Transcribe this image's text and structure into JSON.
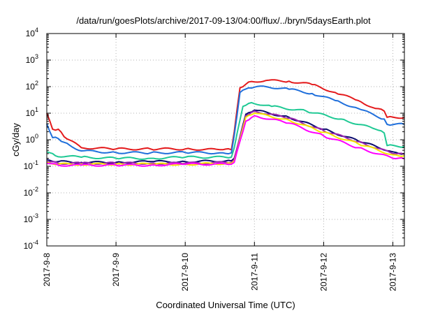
{
  "chart_data": {
    "type": "line",
    "title": "/data/run/goesPlots/archive/2017-09-13/04:00/flux/../bryn/5daysEarth.plot",
    "xlabel": "Coordinated Universal Time (UTC)",
    "ylabel": "cGy/day",
    "yscale": "log",
    "ylim": [
      0.0001,
      10000
    ],
    "xlim": [
      "2017-09-08 00:00",
      "2017-09-13 04:00"
    ],
    "grid": true,
    "legend": "none",
    "xticks": [
      {
        "label": "2017-9-8",
        "value": "2017-09-08"
      },
      {
        "label": "2017-9-9",
        "value": "2017-09-09"
      },
      {
        "label": "2017-9-10",
        "value": "2017-09-10"
      },
      {
        "label": "2017-9-11",
        "value": "2017-09-11"
      },
      {
        "label": "2017-9-12",
        "value": "2017-09-12"
      },
      {
        "label": "2017-9-13",
        "value": "2017-09-13"
      }
    ],
    "yticks": [
      {
        "base": "10",
        "exp": "-4",
        "value": 0.0001
      },
      {
        "base": "10",
        "exp": "-3",
        "value": 0.001
      },
      {
        "base": "10",
        "exp": "-2",
        "value": 0.01
      },
      {
        "base": "10",
        "exp": "-1",
        "value": 0.1
      },
      {
        "base": "10",
        "exp": "0",
        "value": 1
      },
      {
        "base": "10",
        "exp": "1",
        "value": 10
      },
      {
        "base": "10",
        "exp": "2",
        "value": 100
      },
      {
        "base": "10",
        "exp": "3",
        "value": 1000
      },
      {
        "base": "10",
        "exp": "4",
        "value": 10000
      }
    ],
    "series": [
      {
        "color": "#e41a1c",
        "x": [
          "2017-09-08 00:00",
          "2017-09-08 02:00",
          "2017-09-08 04:00",
          "2017-09-08 06:00",
          "2017-09-08 12:00",
          "2017-09-09 00:00",
          "2017-09-09 12:00",
          "2017-09-10 00:00",
          "2017-09-10 12:00",
          "2017-09-10 16:00",
          "2017-09-10 17:00",
          "2017-09-10 19:00",
          "2017-09-10 22:00",
          "2017-09-11 04:00",
          "2017-09-11 12:00",
          "2017-09-11 20:00",
          "2017-09-12 04:00",
          "2017-09-12 12:00",
          "2017-09-12 18:00",
          "2017-09-12 21:00",
          "2017-09-12 22:00",
          "2017-09-13 04:00"
        ],
        "y": [
          10,
          2.5,
          2.5,
          1.3,
          0.5,
          0.45,
          0.45,
          0.45,
          0.42,
          0.42,
          2,
          90,
          150,
          170,
          160,
          120,
          60,
          30,
          15,
          12,
          7,
          7
        ]
      },
      {
        "color": "#1f6fdb",
        "x": [
          "2017-09-08 00:00",
          "2017-09-08 02:00",
          "2017-09-08 04:00",
          "2017-09-08 06:00",
          "2017-09-08 12:00",
          "2017-09-09 00:00",
          "2017-09-09 12:00",
          "2017-09-10 00:00",
          "2017-09-10 12:00",
          "2017-09-10 16:00",
          "2017-09-10 17:00",
          "2017-09-10 19:00",
          "2017-09-10 22:00",
          "2017-09-11 04:00",
          "2017-09-11 12:00",
          "2017-09-11 20:00",
          "2017-09-12 04:00",
          "2017-09-12 12:00",
          "2017-09-12 18:00",
          "2017-09-12 21:00",
          "2017-09-12 22:00",
          "2017-09-13 04:00"
        ],
        "y": [
          4,
          1.2,
          1.1,
          0.8,
          0.38,
          0.33,
          0.32,
          0.33,
          0.32,
          0.32,
          1.5,
          60,
          90,
          100,
          80,
          55,
          30,
          15,
          8,
          6,
          3.8,
          3.8
        ]
      },
      {
        "color": "#1fc994",
        "x": [
          "2017-09-08 00:00",
          "2017-09-08 03:00",
          "2017-09-08 12:00",
          "2017-09-09 00:00",
          "2017-09-09 12:00",
          "2017-09-10 00:00",
          "2017-09-10 16:00",
          "2017-09-10 17:00",
          "2017-09-10 20:00",
          "2017-09-10 23:00",
          "2017-09-11 06:00",
          "2017-09-11 18:00",
          "2017-09-12 06:00",
          "2017-09-12 18:00",
          "2017-09-12 21:00",
          "2017-09-12 22:00",
          "2017-09-13 04:00"
        ],
        "y": [
          0.35,
          0.25,
          0.22,
          0.2,
          0.2,
          0.22,
          0.22,
          0.5,
          18,
          25,
          18,
          12,
          6,
          2.5,
          1.8,
          0.6,
          0.55
        ]
      },
      {
        "color": "#0b0b6e",
        "x": [
          "2017-09-08 00:00",
          "2017-09-08 04:00",
          "2017-09-08 12:00",
          "2017-09-09 00:00",
          "2017-09-09 12:00",
          "2017-09-10 00:00",
          "2017-09-10 16:00",
          "2017-09-10 17:00",
          "2017-09-10 21:00",
          "2017-09-11 00:00",
          "2017-09-11 12:00",
          "2017-09-12 00:00",
          "2017-09-12 12:00",
          "2017-09-13 00:00",
          "2017-09-13 04:00"
        ],
        "y": [
          0.18,
          0.15,
          0.14,
          0.14,
          0.15,
          0.15,
          0.16,
          0.2,
          9,
          13,
          7,
          2.5,
          0.9,
          0.35,
          0.3
        ]
      },
      {
        "color": "#9c27b0",
        "x": [
          "2017-09-08 00:00",
          "2017-09-08 04:00",
          "2017-09-08 12:00",
          "2017-09-09 00:00",
          "2017-09-09 12:00",
          "2017-09-10 00:00",
          "2017-09-10 16:00",
          "2017-09-10 17:00",
          "2017-09-10 21:00",
          "2017-09-11 00:00",
          "2017-09-11 12:00",
          "2017-09-12 00:00",
          "2017-09-12 12:00",
          "2017-09-13 00:00",
          "2017-09-13 04:00"
        ],
        "y": [
          0.15,
          0.13,
          0.13,
          0.13,
          0.13,
          0.13,
          0.14,
          0.18,
          8,
          12,
          6.5,
          2.2,
          0.85,
          0.3,
          0.28
        ]
      },
      {
        "color": "#f5e400",
        "x": [
          "2017-09-08 00:00",
          "2017-09-08 04:00",
          "2017-09-08 12:00",
          "2017-09-09 00:00",
          "2017-09-09 12:00",
          "2017-09-10 00:00",
          "2017-09-10 16:00",
          "2017-09-10 17:00",
          "2017-09-10 21:00",
          "2017-09-11 00:00",
          "2017-09-11 12:00",
          "2017-09-12 00:00",
          "2017-09-12 12:00",
          "2017-09-13 00:00",
          "2017-09-13 04:00"
        ],
        "y": [
          0.14,
          0.12,
          0.12,
          0.12,
          0.12,
          0.12,
          0.13,
          0.16,
          7,
          10,
          5.5,
          1.9,
          0.7,
          0.27,
          0.25
        ]
      },
      {
        "color": "#ff00ff",
        "x": [
          "2017-09-08 00:00",
          "2017-09-08 04:00",
          "2017-09-08 12:00",
          "2017-09-09 00:00",
          "2017-09-09 12:00",
          "2017-09-10 00:00",
          "2017-09-10 16:00",
          "2017-09-10 17:00",
          "2017-09-10 21:00",
          "2017-09-11 00:00",
          "2017-09-11 12:00",
          "2017-09-12 00:00",
          "2017-09-12 12:00",
          "2017-09-13 00:00",
          "2017-09-13 04:00"
        ],
        "y": [
          0.13,
          0.11,
          0.11,
          0.11,
          0.11,
          0.12,
          0.12,
          0.14,
          5,
          8,
          4.2,
          1.4,
          0.5,
          0.2,
          0.19
        ]
      }
    ]
  }
}
